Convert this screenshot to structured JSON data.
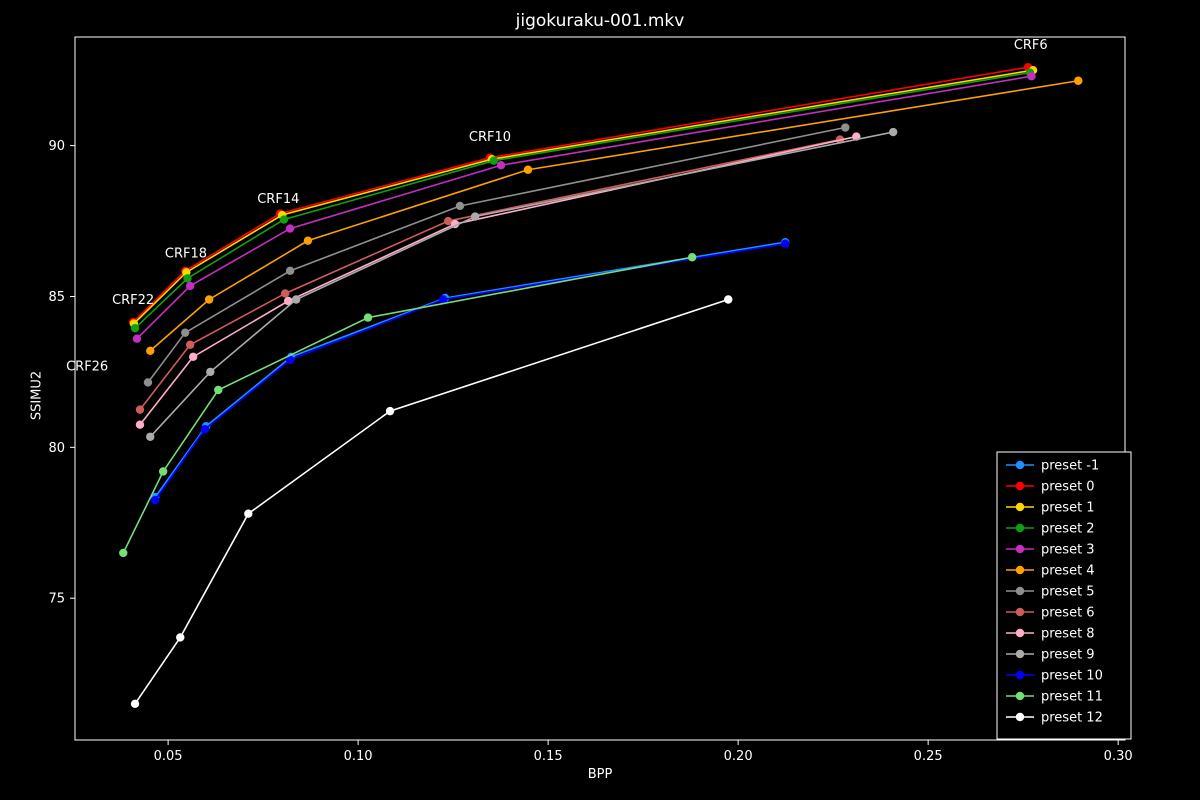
{
  "chart_data": {
    "type": "line",
    "title": "jigokuraku-001.mkv",
    "xlabel": "BPP",
    "ylabel": "SSIMU2",
    "xlim": [
      0.0255,
      0.3018
    ],
    "ylim": [
      70.3,
      93.6
    ],
    "grid": false,
    "background_color": "#000000",
    "text_color": "#ffffff",
    "legend_position": "lower right",
    "xticks": [
      {
        "value": 0.05,
        "label": "0.05"
      },
      {
        "value": 0.1,
        "label": "0.10"
      },
      {
        "value": 0.15,
        "label": "0.15"
      },
      {
        "value": 0.2,
        "label": "0.20"
      },
      {
        "value": 0.25,
        "label": "0.25"
      },
      {
        "value": 0.3,
        "label": "0.30"
      }
    ],
    "yticks": [
      {
        "value": 75,
        "label": "75"
      },
      {
        "value": 80,
        "label": "80"
      },
      {
        "value": 85,
        "label": "85"
      },
      {
        "value": 90,
        "label": "90"
      }
    ],
    "annotations": [
      {
        "label": "CRF6",
        "x": 0.277,
        "y": 93.2
      },
      {
        "label": "CRF10",
        "x": 0.1347,
        "y": 90.15
      },
      {
        "label": "CRF14",
        "x": 0.079,
        "y": 88.1
      },
      {
        "label": "CRF18",
        "x": 0.0547,
        "y": 86.3
      },
      {
        "label": "CRF22",
        "x": 0.0408,
        "y": 84.75
      },
      {
        "label": "CRF26",
        "x": 0.0287,
        "y": 82.55
      }
    ],
    "series": [
      {
        "name": "preset -1",
        "color": "#1e90ff",
        "points": [
          [
            0.0466,
            78.35
          ],
          [
            0.06,
            80.7
          ],
          [
            0.0824,
            83.0
          ],
          [
            0.1229,
            84.95
          ],
          [
            0.2124,
            86.8
          ]
        ]
      },
      {
        "name": "preset 0",
        "color": "#ff0000",
        "points": [
          [
            0.0408,
            84.15
          ],
          [
            0.0545,
            85.85
          ],
          [
            0.0795,
            87.75
          ],
          [
            0.1347,
            89.6
          ],
          [
            0.2763,
            92.6
          ]
        ]
      },
      {
        "name": "preset 1",
        "color": "#ffd700",
        "points": [
          [
            0.041,
            84.1
          ],
          [
            0.0548,
            85.8
          ],
          [
            0.08,
            87.7
          ],
          [
            0.1352,
            89.55
          ],
          [
            0.2776,
            92.5
          ]
        ]
      },
      {
        "name": "preset 2",
        "color": "#0ea10e",
        "points": [
          [
            0.0413,
            83.95
          ],
          [
            0.0551,
            85.6
          ],
          [
            0.0805,
            87.55
          ],
          [
            0.1357,
            89.5
          ],
          [
            0.2768,
            92.42
          ]
        ]
      },
      {
        "name": "preset 3",
        "color": "#c32ec3",
        "points": [
          [
            0.0418,
            83.6
          ],
          [
            0.0558,
            85.35
          ],
          [
            0.0821,
            87.25
          ],
          [
            0.1376,
            89.35
          ],
          [
            0.2772,
            92.3
          ]
        ]
      },
      {
        "name": "preset 4",
        "color": "#ffa000",
        "points": [
          [
            0.0453,
            83.2
          ],
          [
            0.0608,
            84.9
          ],
          [
            0.0868,
            86.85
          ],
          [
            0.1447,
            89.2
          ],
          [
            0.2895,
            92.15
          ]
        ]
      },
      {
        "name": "preset 5",
        "color": "#8f8f8f",
        "points": [
          [
            0.0447,
            82.15
          ],
          [
            0.0545,
            83.8
          ],
          [
            0.0821,
            85.85
          ],
          [
            0.1268,
            88.0
          ],
          [
            0.2282,
            90.6
          ]
        ]
      },
      {
        "name": "preset 6",
        "color": "#cd5c5c",
        "points": [
          [
            0.0426,
            81.25
          ],
          [
            0.0558,
            83.4
          ],
          [
            0.0808,
            85.1
          ],
          [
            0.1237,
            87.5
          ],
          [
            0.2268,
            90.2
          ]
        ]
      },
      {
        "name": "preset 8",
        "color": "#ffaec5",
        "points": [
          [
            0.0426,
            80.75
          ],
          [
            0.0566,
            83.0
          ],
          [
            0.0816,
            84.85
          ],
          [
            0.1255,
            87.4
          ],
          [
            0.2311,
            90.3
          ]
        ]
      },
      {
        "name": "preset 9",
        "color": "#ababab",
        "points": [
          [
            0.0453,
            80.35
          ],
          [
            0.0611,
            82.5
          ],
          [
            0.0837,
            84.9
          ],
          [
            0.1308,
            87.65
          ],
          [
            0.2408,
            90.45
          ]
        ]
      },
      {
        "name": "preset 10",
        "color": "#0000ff",
        "points": [
          [
            0.0466,
            78.25
          ],
          [
            0.0597,
            80.6
          ],
          [
            0.0821,
            82.9
          ],
          [
            0.1224,
            84.9
          ],
          [
            0.2124,
            86.75
          ]
        ]
      },
      {
        "name": "preset 11",
        "color": "#77dd77",
        "points": [
          [
            0.0382,
            76.5
          ],
          [
            0.0487,
            79.2
          ],
          [
            0.0632,
            81.9
          ],
          [
            0.1026,
            84.3
          ],
          [
            0.1879,
            86.3
          ]
        ]
      },
      {
        "name": "preset 12",
        "color": "#ffffff",
        "points": [
          [
            0.0413,
            71.5
          ],
          [
            0.0532,
            73.7
          ],
          [
            0.0711,
            77.8
          ],
          [
            0.1084,
            81.2
          ],
          [
            0.1974,
            84.9
          ]
        ]
      }
    ]
  }
}
